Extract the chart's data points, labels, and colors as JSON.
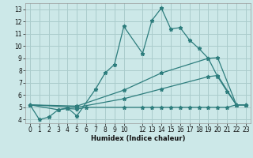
{
  "xlabel": "Humidex (Indice chaleur)",
  "background_color": "#cce8e8",
  "grid_color": "#aacccc",
  "line_color": "#2d7d7d",
  "xlim": [
    -0.5,
    23.5
  ],
  "ylim": [
    3.7,
    13.5
  ],
  "xticks": [
    0,
    1,
    2,
    3,
    4,
    5,
    6,
    7,
    8,
    9,
    10,
    12,
    13,
    14,
    15,
    16,
    17,
    18,
    19,
    20,
    21,
    22,
    23
  ],
  "yticks": [
    4,
    5,
    6,
    7,
    8,
    9,
    10,
    11,
    12,
    13
  ],
  "lines": [
    {
      "x": [
        0,
        1,
        2,
        3,
        4,
        5,
        7,
        8,
        9,
        10,
        12,
        13,
        14,
        15,
        16,
        17,
        18,
        19,
        20,
        21,
        22,
        23
      ],
      "y": [
        5.2,
        4.0,
        4.2,
        4.8,
        4.95,
        4.3,
        6.5,
        7.8,
        8.5,
        11.6,
        9.4,
        12.1,
        13.1,
        11.4,
        11.5,
        10.5,
        9.8,
        9.0,
        7.5,
        6.3,
        5.2,
        5.2
      ]
    },
    {
      "x": [
        0,
        3,
        4,
        5,
        6,
        10,
        12,
        13,
        14,
        15,
        16,
        17,
        18,
        19,
        20,
        21,
        22,
        23
      ],
      "y": [
        5.2,
        4.8,
        4.9,
        4.85,
        5.0,
        5.0,
        5.0,
        5.0,
        5.0,
        5.0,
        5.0,
        5.0,
        5.0,
        5.0,
        5.0,
        5.0,
        5.2,
        5.2
      ]
    },
    {
      "x": [
        0,
        5,
        10,
        14,
        19,
        20,
        22,
        23
      ],
      "y": [
        5.2,
        5.0,
        5.7,
        6.5,
        7.5,
        7.6,
        5.2,
        5.2
      ]
    },
    {
      "x": [
        0,
        5,
        10,
        14,
        19,
        20,
        22,
        23
      ],
      "y": [
        5.2,
        5.1,
        6.4,
        7.8,
        9.0,
        9.05,
        5.2,
        5.2
      ]
    }
  ]
}
